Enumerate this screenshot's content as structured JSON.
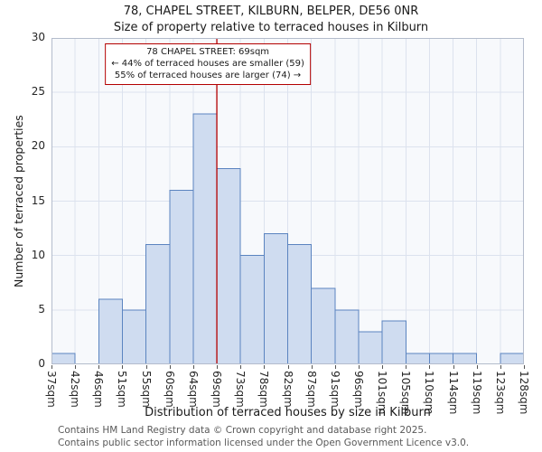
{
  "chart_data": {
    "type": "bar",
    "title": "78, CHAPEL STREET, KILBURN, BELPER, DE56 0NR",
    "subtitle": "Size of property relative to terraced houses in Kilburn",
    "xlabel": "Distribution of terraced houses by size in Kilburn",
    "ylabel": "Number of terraced properties",
    "categories": [
      "37sqm",
      "42sqm",
      "46sqm",
      "51sqm",
      "55sqm",
      "60sqm",
      "64sqm",
      "69sqm",
      "73sqm",
      "78sqm",
      "82sqm",
      "87sqm",
      "91sqm",
      "96sqm",
      "101sqm",
      "105sqm",
      "110sqm",
      "114sqm",
      "119sqm",
      "123sqm",
      "128sqm"
    ],
    "values": [
      1,
      0,
      6,
      5,
      11,
      16,
      23,
      18,
      10,
      12,
      11,
      7,
      5,
      3,
      4,
      1,
      1,
      1,
      0,
      1
    ],
    "ylim": [
      0,
      30
    ],
    "yticks": [
      0,
      5,
      10,
      15,
      20,
      25,
      30
    ],
    "grid": true,
    "legend": "none",
    "marker": {
      "edge_label": "69sqm",
      "edge_index": 7
    },
    "colors": {
      "bar_fill": "#cfdcf0",
      "bar_stroke": "#5b84c0",
      "grid": "#dce2ee",
      "plot_bg": "#f7f9fc",
      "frame": "#b4bccc",
      "marker": "#b30000"
    }
  },
  "annotation": {
    "line1": "78 CHAPEL STREET: 69sqm",
    "line2": "← 44% of terraced houses are smaller (59)",
    "line3": "55% of terraced houses are larger (74) →"
  },
  "footer": {
    "line1": "Contains HM Land Registry data © Crown copyright and database right 2025.",
    "line2": "Contains public sector information licensed under the Open Government Licence v3.0."
  }
}
